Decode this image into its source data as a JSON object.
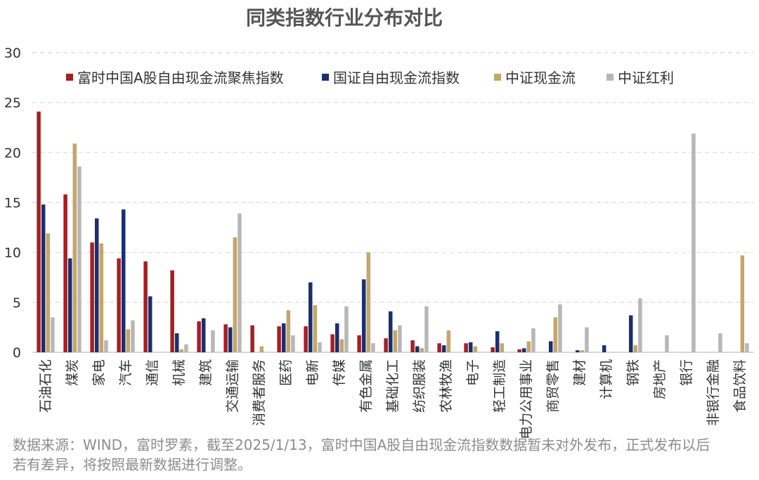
{
  "chart_data": {
    "type": "bar",
    "title": "同类指数行业分布对比",
    "xlabel": "",
    "ylabel": "",
    "ylim": [
      0,
      30
    ],
    "yticks": [
      0,
      5,
      10,
      15,
      20,
      25,
      30
    ],
    "grid": true,
    "legend_position": "top",
    "categories": [
      "石油石化",
      "煤炭",
      "家电",
      "汽车",
      "通信",
      "机械",
      "建筑",
      "交通运输",
      "消费者服务",
      "医药",
      "电新",
      "传媒",
      "有色金属",
      "基础化工",
      "纺织服装",
      "农林牧渔",
      "电子",
      "轻工制造",
      "电力公用事业",
      "商贸零售",
      "建材",
      "计算机",
      "钢铁",
      "房地产",
      "银行",
      "非银行金融",
      "食品饮料"
    ],
    "series": [
      {
        "name": "富时中国A股自由现金流聚焦指数",
        "color": "#a31f24",
        "values": [
          24.1,
          15.8,
          11.0,
          9.4,
          9.1,
          8.2,
          3.1,
          2.8,
          2.7,
          2.6,
          2.6,
          1.8,
          1.7,
          1.4,
          1.2,
          0.9,
          0.9,
          0.5,
          0.3,
          0,
          0,
          0,
          0,
          0,
          0,
          0,
          0
        ]
      },
      {
        "name": "国证自由现金流指数",
        "color": "#1b2f6e",
        "values": [
          14.8,
          9.4,
          13.4,
          14.3,
          5.6,
          1.9,
          3.4,
          2.5,
          0,
          2.9,
          7.0,
          2.9,
          7.3,
          4.1,
          0.6,
          0.7,
          1.0,
          2.1,
          0.4,
          1.1,
          0.2,
          0.7,
          3.7,
          0,
          0,
          0,
          0
        ]
      },
      {
        "name": "中证现金流",
        "color": "#c4a66a",
        "values": [
          11.9,
          20.9,
          10.9,
          2.3,
          0,
          0.3,
          0,
          11.5,
          0.6,
          4.2,
          4.7,
          1.3,
          10.0,
          2.2,
          0.4,
          2.2,
          0.6,
          0.9,
          1.1,
          3.5,
          0.2,
          0,
          0.7,
          0,
          0,
          0,
          9.7
        ]
      },
      {
        "name": "中证红利",
        "color": "#b7b7b7",
        "values": [
          3.5,
          18.6,
          1.2,
          3.2,
          0,
          0.8,
          2.2,
          13.9,
          0,
          1.7,
          1.0,
          4.6,
          0.9,
          2.7,
          4.6,
          0,
          0,
          0,
          2.4,
          4.8,
          2.5,
          0,
          5.4,
          1.7,
          21.9,
          1.9,
          0.9
        ]
      }
    ]
  },
  "source_note": "数据来源：WIND，富时罗素，截至2025/1/13，富时中国A股自由现金流指数数据暂未对外发布，正式发布以后若有差异，将按照最新数据进行调整。"
}
